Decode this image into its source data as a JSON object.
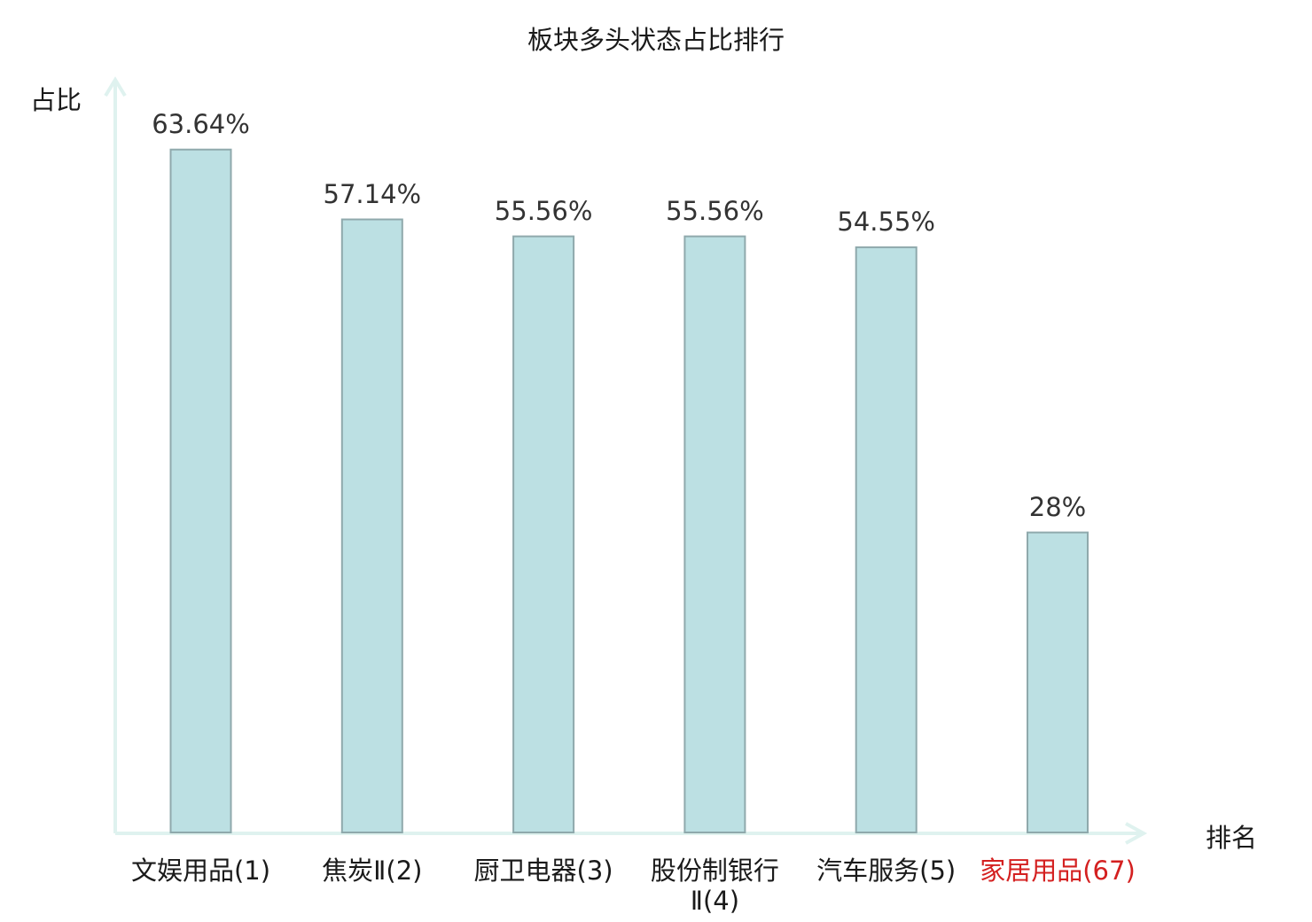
{
  "chart_data": {
    "type": "bar",
    "title": "板块多头状态占比排行",
    "ylabel": "占比",
    "xlabel": "排名",
    "categories": [
      "文娱用品(1)",
      "焦炭Ⅱ(2)",
      "厨卫电器(3)",
      "股份制银行Ⅱ(4)",
      "汽车服务(5)",
      "家居用品(67)"
    ],
    "values": [
      63.64,
      57.14,
      55.56,
      55.56,
      54.55,
      28
    ],
    "value_labels": [
      "63.64%",
      "57.14%",
      "55.56%",
      "55.56%",
      "54.55%",
      "28%"
    ],
    "ylim": [
      0,
      70
    ],
    "grid": false,
    "highlight_index": 5,
    "colors": {
      "bar_fill": "#bce0e3",
      "bar_stroke": "#8fa9ac",
      "axis": "#dff2ef",
      "highlight": "#d42020"
    }
  }
}
